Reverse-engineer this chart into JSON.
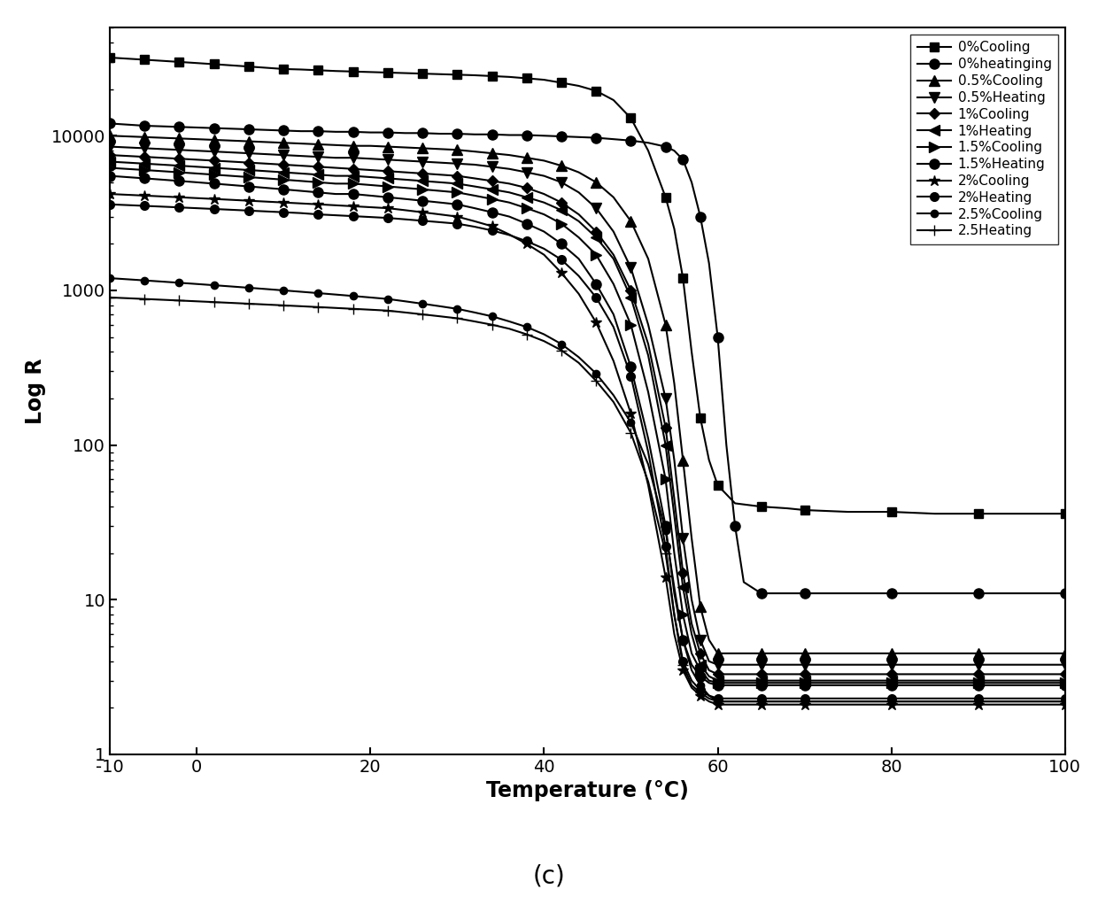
{
  "title": "(c)",
  "xlabel": "Temperature (°C)",
  "ylabel": "Log R",
  "xlim": [
    -10,
    100
  ],
  "ylim_log": [
    1,
    50000
  ],
  "background_color": "#ffffff",
  "series": [
    {
      "label": "0%Cooling",
      "marker": "s",
      "color": "#000000",
      "markersize": 7,
      "markevery": 2,
      "temps": [
        -10,
        -8,
        -6,
        -4,
        -2,
        0,
        2,
        4,
        6,
        8,
        10,
        12,
        14,
        16,
        18,
        20,
        22,
        24,
        26,
        28,
        30,
        32,
        34,
        36,
        38,
        40,
        42,
        44,
        46,
        48,
        50,
        52,
        54,
        55,
        56,
        57,
        58,
        59,
        60,
        62,
        65,
        68,
        70,
        75,
        80,
        85,
        90,
        95,
        100
      ],
      "values": [
        32000,
        31500,
        31000,
        30500,
        30000,
        29500,
        29000,
        28500,
        28000,
        27500,
        27000,
        26800,
        26500,
        26200,
        26000,
        25800,
        25600,
        25400,
        25200,
        25000,
        24800,
        24600,
        24300,
        24000,
        23500,
        23000,
        22000,
        21000,
        19500,
        17000,
        13000,
        8000,
        4000,
        2500,
        1200,
        400,
        150,
        80,
        55,
        42,
        40,
        39,
        38,
        37,
        37,
        36,
        36,
        36,
        36
      ]
    },
    {
      "label": "0%heatinging",
      "marker": "o",
      "color": "#000000",
      "markersize": 8,
      "markevery": 2,
      "temps": [
        -10,
        -8,
        -6,
        -4,
        -2,
        0,
        2,
        4,
        6,
        8,
        10,
        12,
        14,
        16,
        18,
        20,
        22,
        24,
        26,
        28,
        30,
        32,
        34,
        36,
        38,
        40,
        42,
        44,
        46,
        48,
        50,
        52,
        54,
        55,
        56,
        57,
        58,
        59,
        60,
        61,
        62,
        63,
        65,
        68,
        70,
        75,
        80,
        85,
        90,
        95,
        100
      ],
      "values": [
        12000,
        11800,
        11600,
        11500,
        11400,
        11300,
        11200,
        11100,
        11000,
        10900,
        10800,
        10700,
        10700,
        10600,
        10600,
        10500,
        10500,
        10400,
        10400,
        10300,
        10300,
        10200,
        10200,
        10100,
        10100,
        10000,
        9900,
        9800,
        9700,
        9500,
        9300,
        9000,
        8500,
        8000,
        7000,
        5000,
        3000,
        1500,
        500,
        100,
        30,
        13,
        11,
        11,
        11,
        11,
        11,
        11,
        11,
        11,
        11
      ]
    },
    {
      "label": "0.5%Cooling",
      "marker": "^",
      "color": "#000000",
      "markersize": 8,
      "markevery": 2,
      "temps": [
        -10,
        -8,
        -6,
        -4,
        -2,
        0,
        2,
        4,
        6,
        8,
        10,
        12,
        14,
        16,
        18,
        20,
        22,
        24,
        26,
        28,
        30,
        32,
        34,
        36,
        38,
        40,
        42,
        44,
        46,
        48,
        50,
        52,
        54,
        55,
        56,
        57,
        58,
        59,
        60,
        62,
        65,
        68,
        70,
        75,
        80,
        85,
        90,
        95,
        100
      ],
      "values": [
        10000,
        9900,
        9800,
        9700,
        9600,
        9500,
        9400,
        9300,
        9200,
        9100,
        9000,
        8900,
        8800,
        8700,
        8600,
        8600,
        8500,
        8400,
        8300,
        8200,
        8100,
        7900,
        7700,
        7500,
        7200,
        6900,
        6400,
        5800,
        5000,
        4000,
        2800,
        1600,
        600,
        250,
        80,
        25,
        9,
        5.5,
        4.5,
        4.5,
        4.5,
        4.5,
        4.5,
        4.5,
        4.5,
        4.5,
        4.5,
        4.5,
        4.5
      ]
    },
    {
      "label": "0.5%Heating",
      "marker": "v",
      "color": "#000000",
      "markersize": 8,
      "markevery": 2,
      "temps": [
        -10,
        -8,
        -6,
        -4,
        -2,
        0,
        2,
        4,
        6,
        8,
        10,
        12,
        14,
        16,
        18,
        20,
        22,
        24,
        26,
        28,
        30,
        32,
        34,
        36,
        38,
        40,
        42,
        44,
        46,
        48,
        50,
        52,
        54,
        55,
        56,
        57,
        58,
        59,
        60,
        62,
        65,
        68,
        70,
        75,
        80,
        85,
        90,
        95,
        100
      ],
      "values": [
        8500,
        8400,
        8300,
        8200,
        8100,
        8000,
        7900,
        7800,
        7700,
        7600,
        7500,
        7400,
        7300,
        7200,
        7200,
        7100,
        7000,
        6900,
        6800,
        6700,
        6600,
        6500,
        6300,
        6100,
        5800,
        5500,
        5000,
        4300,
        3400,
        2400,
        1400,
        600,
        200,
        80,
        25,
        10,
        5.5,
        4,
        3.8,
        3.8,
        3.8,
        3.8,
        3.8,
        3.8,
        3.8,
        3.8,
        3.8,
        3.8,
        3.8
      ]
    },
    {
      "label": "1%Cooling",
      "marker": "D",
      "color": "#000000",
      "markersize": 6,
      "markevery": 2,
      "temps": [
        -10,
        -8,
        -6,
        -4,
        -2,
        0,
        2,
        4,
        6,
        8,
        10,
        12,
        14,
        16,
        18,
        20,
        22,
        24,
        26,
        28,
        30,
        32,
        34,
        36,
        38,
        40,
        42,
        44,
        46,
        48,
        50,
        52,
        54,
        55,
        56,
        57,
        58,
        59,
        60,
        62,
        65,
        68,
        70,
        75,
        80,
        85,
        90,
        95,
        100
      ],
      "values": [
        7500,
        7400,
        7300,
        7200,
        7100,
        7000,
        6900,
        6800,
        6700,
        6600,
        6500,
        6400,
        6300,
        6200,
        6100,
        6000,
        5900,
        5800,
        5700,
        5600,
        5500,
        5300,
        5100,
        4900,
        4600,
        4200,
        3700,
        3100,
        2400,
        1700,
        1000,
        450,
        130,
        45,
        15,
        7,
        4.5,
        3.5,
        3.3,
        3.3,
        3.3,
        3.3,
        3.3,
        3.3,
        3.3,
        3.3,
        3.3,
        3.3,
        3.3
      ]
    },
    {
      "label": "1%Heating",
      "marker": "<",
      "color": "#000000",
      "markersize": 8,
      "markevery": 2,
      "temps": [
        -10,
        -8,
        -6,
        -4,
        -2,
        0,
        2,
        4,
        6,
        8,
        10,
        12,
        14,
        16,
        18,
        20,
        22,
        24,
        26,
        28,
        30,
        32,
        34,
        36,
        38,
        40,
        42,
        44,
        46,
        48,
        50,
        52,
        54,
        55,
        56,
        57,
        58,
        59,
        60,
        62,
        65,
        68,
        70,
        75,
        80,
        85,
        90,
        95,
        100
      ],
      "values": [
        6800,
        6700,
        6600,
        6500,
        6400,
        6300,
        6200,
        6100,
        6000,
        5900,
        5800,
        5700,
        5600,
        5500,
        5500,
        5400,
        5300,
        5200,
        5100,
        5000,
        4900,
        4700,
        4500,
        4300,
        4000,
        3700,
        3300,
        2800,
        2200,
        1600,
        900,
        380,
        100,
        35,
        12,
        6,
        3.8,
        3.2,
        3.0,
        3.0,
        3.0,
        3.0,
        3.0,
        3.0,
        3.0,
        3.0,
        3.0,
        3.0,
        3.0
      ]
    },
    {
      "label": "1.5%Cooling",
      "marker": ">",
      "color": "#000000",
      "markersize": 8,
      "markevery": 2,
      "temps": [
        -10,
        -8,
        -6,
        -4,
        -2,
        0,
        2,
        4,
        6,
        8,
        10,
        12,
        14,
        16,
        18,
        20,
        22,
        24,
        26,
        28,
        30,
        32,
        34,
        36,
        38,
        40,
        42,
        44,
        46,
        48,
        50,
        52,
        54,
        55,
        56,
        57,
        58,
        59,
        60,
        62,
        65,
        68,
        70,
        75,
        80,
        85,
        90,
        95,
        100
      ],
      "values": [
        6200,
        6100,
        6000,
        5900,
        5800,
        5700,
        5600,
        5500,
        5400,
        5300,
        5200,
        5100,
        5000,
        4900,
        4900,
        4800,
        4700,
        4600,
        4500,
        4400,
        4300,
        4100,
        3900,
        3700,
        3400,
        3100,
        2700,
        2200,
        1700,
        1100,
        600,
        220,
        60,
        20,
        8,
        4.5,
        3.5,
        3.0,
        2.9,
        2.9,
        2.9,
        2.9,
        2.9,
        2.9,
        2.9,
        2.9,
        2.9,
        2.9,
        2.9
      ]
    },
    {
      "label": "1.5%Heating",
      "marker": "o",
      "color": "#000000",
      "markersize": 8,
      "markevery": 2,
      "temps": [
        -10,
        -8,
        -6,
        -4,
        -2,
        0,
        2,
        4,
        6,
        8,
        10,
        12,
        14,
        16,
        18,
        20,
        22,
        24,
        26,
        28,
        30,
        32,
        34,
        36,
        38,
        40,
        42,
        44,
        46,
        48,
        50,
        52,
        54,
        55,
        56,
        57,
        58,
        59,
        60,
        62,
        65,
        68,
        70,
        75,
        80,
        85,
        90,
        95,
        100
      ],
      "values": [
        5500,
        5400,
        5300,
        5200,
        5100,
        5000,
        4900,
        4800,
        4700,
        4600,
        4500,
        4400,
        4300,
        4200,
        4200,
        4100,
        4000,
        3900,
        3800,
        3700,
        3600,
        3400,
        3200,
        3000,
        2700,
        2400,
        2000,
        1600,
        1100,
        700,
        320,
        110,
        30,
        11,
        5.5,
        3.8,
        3.2,
        2.9,
        2.8,
        2.8,
        2.8,
        2.8,
        2.8,
        2.8,
        2.8,
        2.8,
        2.8,
        2.8,
        2.8
      ]
    },
    {
      "label": "2%Cooling",
      "marker": "*",
      "color": "#000000",
      "markersize": 9,
      "markevery": 2,
      "temps": [
        -10,
        -8,
        -6,
        -4,
        -2,
        0,
        2,
        4,
        6,
        8,
        10,
        12,
        14,
        16,
        18,
        20,
        22,
        24,
        26,
        28,
        30,
        32,
        34,
        36,
        38,
        40,
        42,
        44,
        46,
        48,
        50,
        52,
        54,
        55,
        56,
        57,
        58,
        59,
        60,
        62,
        65,
        68,
        70,
        75,
        80,
        85,
        90,
        95,
        100
      ],
      "values": [
        4200,
        4150,
        4100,
        4050,
        4000,
        3950,
        3900,
        3850,
        3800,
        3750,
        3700,
        3650,
        3600,
        3550,
        3500,
        3450,
        3400,
        3300,
        3200,
        3100,
        3000,
        2800,
        2600,
        2300,
        2000,
        1700,
        1300,
        950,
        620,
        350,
        160,
        55,
        14,
        6,
        3.5,
        2.7,
        2.4,
        2.2,
        2.1,
        2.1,
        2.1,
        2.1,
        2.1,
        2.1,
        2.1,
        2.1,
        2.1,
        2.1,
        2.1
      ]
    },
    {
      "label": "2%Heating",
      "marker": "o",
      "color": "#000000",
      "markersize": 7,
      "markevery": 2,
      "temps": [
        -10,
        -8,
        -6,
        -4,
        -2,
        0,
        2,
        4,
        6,
        8,
        10,
        12,
        14,
        16,
        18,
        20,
        22,
        24,
        26,
        28,
        30,
        32,
        34,
        36,
        38,
        40,
        42,
        44,
        46,
        48,
        50,
        52,
        54,
        55,
        56,
        57,
        58,
        59,
        60,
        62,
        65,
        68,
        70,
        75,
        80,
        85,
        90,
        95,
        100
      ],
      "values": [
        3600,
        3560,
        3520,
        3480,
        3440,
        3400,
        3360,
        3320,
        3280,
        3240,
        3200,
        3160,
        3100,
        3060,
        3020,
        2980,
        2940,
        2880,
        2820,
        2760,
        2700,
        2580,
        2440,
        2280,
        2080,
        1860,
        1580,
        1240,
        900,
        580,
        280,
        90,
        22,
        8,
        4,
        3,
        2.6,
        2.4,
        2.3,
        2.3,
        2.3,
        2.3,
        2.3,
        2.3,
        2.3,
        2.3,
        2.3,
        2.3,
        2.3
      ]
    },
    {
      "label": "2.5%Cooling",
      "marker": "o",
      "color": "#000000",
      "markersize": 6,
      "markevery": 2,
      "temps": [
        -10,
        -8,
        -6,
        -4,
        -2,
        0,
        2,
        4,
        6,
        8,
        10,
        12,
        14,
        16,
        18,
        20,
        22,
        24,
        26,
        28,
        30,
        32,
        34,
        36,
        38,
        40,
        42,
        44,
        46,
        48,
        50,
        52,
        54,
        55,
        56,
        57,
        58,
        59,
        60,
        62,
        65,
        68,
        70,
        75,
        80,
        85,
        90,
        95,
        100
      ],
      "values": [
        1200,
        1180,
        1160,
        1140,
        1120,
        1100,
        1080,
        1060,
        1040,
        1020,
        1000,
        980,
        960,
        940,
        920,
        900,
        880,
        850,
        820,
        790,
        760,
        720,
        680,
        630,
        580,
        520,
        450,
        370,
        290,
        210,
        140,
        75,
        28,
        12,
        5.5,
        3.5,
        2.8,
        2.4,
        2.2,
        2.2,
        2.2,
        2.2,
        2.2,
        2.2,
        2.2,
        2.2,
        2.2,
        2.2,
        2.2
      ]
    },
    {
      "label": "2.5Heating",
      "marker": "+",
      "color": "#000000",
      "markersize": 9,
      "markevery": 2,
      "temps": [
        -10,
        -8,
        -6,
        -4,
        -2,
        0,
        2,
        4,
        6,
        8,
        10,
        12,
        14,
        16,
        18,
        20,
        22,
        24,
        26,
        28,
        30,
        32,
        34,
        36,
        38,
        40,
        42,
        44,
        46,
        48,
        50,
        52,
        54,
        55,
        56,
        57,
        58,
        59,
        60,
        62,
        65,
        68,
        70,
        75,
        80,
        85,
        90,
        95,
        100
      ],
      "values": [
        900,
        890,
        880,
        870,
        860,
        850,
        840,
        830,
        820,
        810,
        800,
        790,
        780,
        770,
        760,
        750,
        740,
        720,
        700,
        680,
        660,
        630,
        600,
        565,
        520,
        470,
        410,
        340,
        260,
        190,
        120,
        58,
        20,
        8,
        3.8,
        2.8,
        2.5,
        2.3,
        2.2,
        2.2,
        2.2,
        2.2,
        2.2,
        2.2,
        2.2,
        2.2,
        2.2,
        2.2,
        2.2
      ]
    }
  ]
}
